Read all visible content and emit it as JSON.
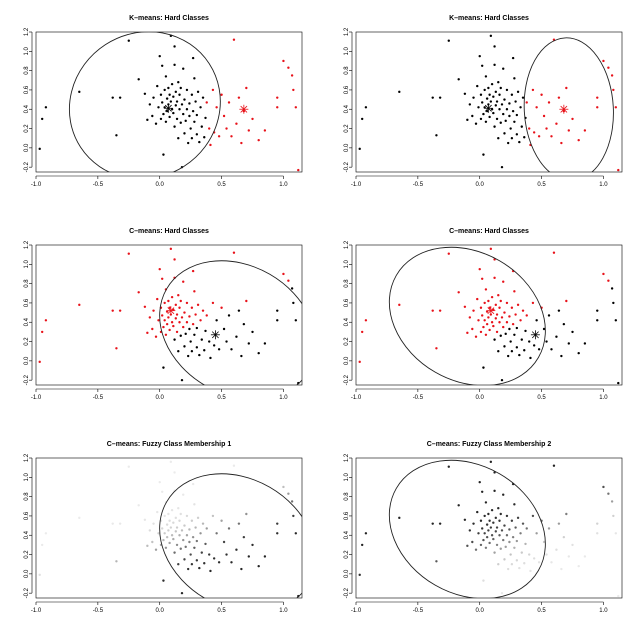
{
  "colors": {
    "black": "#000000",
    "red": "#e8121a",
    "ellipse": "#222222"
  },
  "chart_data": [
    {
      "type": "scatter",
      "title": "K–means: Hard Classes",
      "xlim": [
        -1.0,
        1.15
      ],
      "ylim": [
        -0.25,
        1.2
      ],
      "xticks": [
        "-1.0",
        "-0.5",
        "0.0",
        "0.5",
        "1.0"
      ],
      "yticks": [
        "-0.2",
        "0.0",
        "0.2",
        "0.4",
        "0.6",
        "0.8",
        "1.0",
        "1.2"
      ],
      "highlight": 0,
      "centers": [
        {
          "x": 0.07,
          "y": 0.41,
          "cls": 0
        },
        {
          "x": 0.68,
          "y": 0.4,
          "cls": 1
        }
      ],
      "ellipse": {
        "cx": -0.12,
        "cy": 0.44,
        "rx": 0.62,
        "ry": 0.75,
        "angle": 33
      }
    },
    {
      "type": "scatter",
      "title": "K–means: Hard Classes",
      "xlim": [
        -1.0,
        1.15
      ],
      "ylim": [
        -0.25,
        1.2
      ],
      "xticks": [
        "-1.0",
        "-0.5",
        "0.0",
        "0.5",
        "1.0"
      ],
      "yticks": [
        "-0.2",
        "0.0",
        "0.2",
        "0.4",
        "0.6",
        "0.8",
        "1.0",
        "1.2"
      ],
      "highlight": 1,
      "centers": [
        {
          "x": 0.07,
          "y": 0.41,
          "cls": 0
        },
        {
          "x": 0.68,
          "y": 0.4,
          "cls": 1
        }
      ],
      "ellipse": {
        "cx": 0.72,
        "cy": 0.4,
        "rx": 0.36,
        "ry": 0.74,
        "angle": 3
      }
    },
    {
      "type": "scatter",
      "title": "C–means: Hard Classes",
      "xlim": [
        -1.0,
        1.15
      ],
      "ylim": [
        -0.25,
        1.2
      ],
      "xticks": [
        "-1.0",
        "-0.5",
        "0.0",
        "0.5",
        "1.0"
      ],
      "yticks": [
        "-0.2",
        "0.0",
        "0.2",
        "0.4",
        "0.6",
        "0.8",
        "1.0",
        "1.2"
      ],
      "highlight": 0,
      "centers": [
        {
          "x": 0.09,
          "y": 0.52,
          "cls": 1
        },
        {
          "x": 0.45,
          "y": 0.27,
          "cls": 0
        }
      ],
      "ellipse": {
        "cx": 0.63,
        "cy": 0.32,
        "rx": 0.52,
        "ry": 0.85,
        "angle": 60
      }
    },
    {
      "type": "scatter",
      "title": "C–means: Hard Classes",
      "xlim": [
        -1.0,
        1.15
      ],
      "ylim": [
        -0.25,
        1.2
      ],
      "xticks": [
        "-1.0",
        "-0.5",
        "0.0",
        "0.5",
        "1.0"
      ],
      "yticks": [
        "-0.2",
        "0.0",
        "0.2",
        "0.4",
        "0.6",
        "0.8",
        "1.0",
        "1.2"
      ],
      "highlight": 1,
      "centers": [
        {
          "x": 0.09,
          "y": 0.52,
          "cls": 1
        },
        {
          "x": 0.45,
          "y": 0.27,
          "cls": 0
        }
      ],
      "ellipse": {
        "cx": -0.1,
        "cy": 0.46,
        "rx": 0.52,
        "ry": 0.85,
        "angle": 60
      }
    },
    {
      "type": "scatter",
      "title": "C–means: Fuzzy Class Membership  1",
      "xlim": [
        -1.0,
        1.15
      ],
      "ylim": [
        -0.25,
        1.2
      ],
      "xticks": [
        "-1.0",
        "-0.5",
        "0.0",
        "0.5",
        "1.0"
      ],
      "yticks": [
        "-0.2",
        "0.0",
        "0.2",
        "0.4",
        "0.6",
        "0.8",
        "1.0",
        "1.2"
      ],
      "fuzzy": 0,
      "centers": [],
      "ellipse": {
        "cx": 0.63,
        "cy": 0.32,
        "rx": 0.52,
        "ry": 0.85,
        "angle": 60
      }
    },
    {
      "type": "scatter",
      "title": "C–means: Fuzzy Class Membership  2",
      "xlim": [
        -1.0,
        1.15
      ],
      "ylim": [
        -0.25,
        1.2
      ],
      "xticks": [
        "-1.0",
        "-0.5",
        "0.0",
        "0.5",
        "1.0"
      ],
      "yticks": [
        "-0.2",
        "0.0",
        "0.2",
        "0.4",
        "0.6",
        "0.8",
        "1.0",
        "1.2"
      ],
      "fuzzy": 1,
      "centers": [],
      "ellipse": {
        "cx": -0.1,
        "cy": 0.46,
        "rx": 0.52,
        "ry": 0.85,
        "angle": 60
      }
    }
  ],
  "points": [
    [
      -0.97,
      -0.01
    ],
    [
      -0.95,
      0.3
    ],
    [
      -0.92,
      0.42
    ],
    [
      -0.65,
      0.58
    ],
    [
      -0.38,
      0.52
    ],
    [
      -0.35,
      0.13
    ],
    [
      -0.32,
      0.52
    ],
    [
      -0.25,
      1.11
    ],
    [
      -0.17,
      0.71
    ],
    [
      -0.12,
      0.56
    ],
    [
      -0.08,
      0.45
    ],
    [
      -0.06,
      0.33
    ],
    [
      -0.05,
      0.52
    ],
    [
      -0.03,
      0.25
    ],
    [
      -0.02,
      0.64
    ],
    [
      -0.01,
      0.42
    ],
    [
      0.0,
      0.95
    ],
    [
      0.01,
      0.55
    ],
    [
      0.01,
      0.3
    ],
    [
      0.02,
      0.85
    ],
    [
      0.02,
      0.47
    ],
    [
      0.03,
      0.35
    ],
    [
      0.03,
      -0.07
    ],
    [
      0.04,
      0.6
    ],
    [
      0.04,
      0.42
    ],
    [
      0.05,
      0.27
    ],
    [
      0.05,
      0.74
    ],
    [
      0.06,
      0.51
    ],
    [
      0.06,
      0.38
    ],
    [
      0.07,
      0.62
    ],
    [
      0.07,
      0.45
    ],
    [
      0.08,
      0.32
    ],
    [
      0.08,
      0.55
    ],
    [
      0.09,
      1.16
    ],
    [
      0.09,
      0.48
    ],
    [
      0.1,
      0.4
    ],
    [
      0.1,
      0.66
    ],
    [
      0.11,
      0.53
    ],
    [
      0.11,
      0.36
    ],
    [
      0.12,
      0.22
    ],
    [
      0.12,
      1.05
    ],
    [
      0.13,
      0.44
    ],
    [
      0.13,
      0.58
    ],
    [
      0.14,
      0.3
    ],
    [
      0.14,
      0.48
    ],
    [
      0.15,
      0.1
    ],
    [
      0.15,
      0.68
    ],
    [
      0.16,
      0.4
    ],
    [
      0.16,
      0.55
    ],
    [
      0.17,
      0.26
    ],
    [
      0.17,
      0.62
    ],
    [
      0.18,
      0.45
    ],
    [
      0.18,
      -0.2
    ],
    [
      0.19,
      0.35
    ],
    [
      0.19,
      0.82
    ],
    [
      0.2,
      0.5
    ],
    [
      0.2,
      0.15
    ],
    [
      0.21,
      0.28
    ],
    [
      0.22,
      0.4
    ],
    [
      0.22,
      0.6
    ],
    [
      0.23,
      0.05
    ],
    [
      0.24,
      0.33
    ],
    [
      0.24,
      0.46
    ],
    [
      0.25,
      0.2
    ],
    [
      0.26,
      0.55
    ],
    [
      0.26,
      0.1
    ],
    [
      0.27,
      0.38
    ],
    [
      0.28,
      0.27
    ],
    [
      0.28,
      0.72
    ],
    [
      0.29,
      0.48
    ],
    [
      0.3,
      0.14
    ],
    [
      0.3,
      0.34
    ],
    [
      0.31,
      0.58
    ],
    [
      0.32,
      0.06
    ],
    [
      0.33,
      0.42
    ],
    [
      0.34,
      0.22
    ],
    [
      0.35,
      0.52
    ],
    [
      0.36,
      0.11
    ],
    [
      0.37,
      0.31
    ],
    [
      0.38,
      0.47
    ],
    [
      0.4,
      0.2
    ],
    [
      0.41,
      0.03
    ],
    [
      0.43,
      0.6
    ],
    [
      0.44,
      0.16
    ],
    [
      0.46,
      0.42
    ],
    [
      0.48,
      0.12
    ],
    [
      0.5,
      0.55
    ],
    [
      0.52,
      0.33
    ],
    [
      0.54,
      0.2
    ],
    [
      0.56,
      0.47
    ],
    [
      0.58,
      0.12
    ],
    [
      0.6,
      1.12
    ],
    [
      0.62,
      0.25
    ],
    [
      0.64,
      0.52
    ],
    [
      0.66,
      0.05
    ],
    [
      0.68,
      0.38
    ],
    [
      0.7,
      0.62
    ],
    [
      0.72,
      0.18
    ],
    [
      0.75,
      0.3
    ],
    [
      0.8,
      0.08
    ],
    [
      0.85,
      0.18
    ],
    [
      0.95,
      0.42
    ],
    [
      0.95,
      0.52
    ],
    [
      1.0,
      0.9
    ],
    [
      1.04,
      0.83
    ],
    [
      1.07,
      0.75
    ],
    [
      1.08,
      0.6
    ],
    [
      1.1,
      0.42
    ],
    [
      1.12,
      -0.23
    ],
    [
      0.12,
      0.86
    ],
    [
      -0.1,
      0.29
    ],
    [
      0.27,
      0.93
    ]
  ]
}
